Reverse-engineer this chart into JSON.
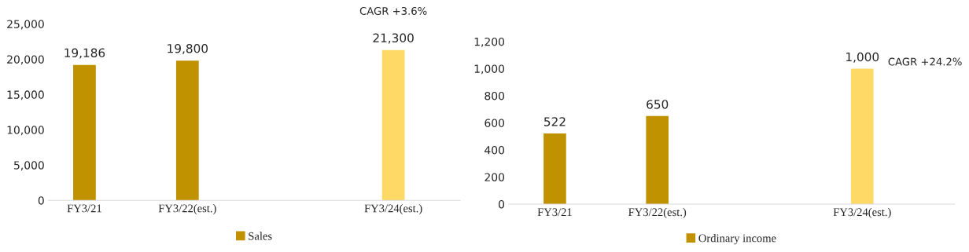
{
  "chart_data": [
    {
      "type": "bar",
      "categories": [
        "FY3/21",
        "FY3/22(est.)",
        null,
        "FY3/24(est.)"
      ],
      "series": [
        {
          "name": "Sales",
          "color": "#c09200",
          "colors": [
            "#c09200",
            "#c09200",
            null,
            "#ffd966"
          ],
          "values": [
            19186,
            19800,
            null,
            21300
          ]
        }
      ],
      "ylim": [
        0,
        25000
      ],
      "yticks": [
        {
          "value": 0,
          "label": "0"
        },
        {
          "value": 5000,
          "label": "5,000"
        },
        {
          "value": 10000,
          "label": "10,000"
        },
        {
          "value": 15000,
          "label": "15,000"
        },
        {
          "value": 20000,
          "label": "20,000"
        },
        {
          "value": 25000,
          "label": "25,000"
        }
      ],
      "value_labels": [
        "19,186",
        "19,800",
        null,
        "21,300"
      ],
      "annotations": [
        "CAGR +3.6%"
      ],
      "grid": false,
      "legend": "bottom"
    },
    {
      "type": "bar",
      "categories": [
        "FY3/21",
        "FY3/22(est.)",
        null,
        "FY3/24(est.)"
      ],
      "series": [
        {
          "name": "Ordinary income",
          "color": "#c09200",
          "colors": [
            "#c09200",
            "#c09200",
            null,
            "#ffd966"
          ],
          "values": [
            522,
            650,
            null,
            1000
          ]
        }
      ],
      "ylim": [
        0,
        1200
      ],
      "yticks": [
        {
          "value": 0,
          "label": "0"
        },
        {
          "value": 200,
          "label": "200"
        },
        {
          "value": 400,
          "label": "400"
        },
        {
          "value": 600,
          "label": "600"
        },
        {
          "value": 800,
          "label": "800"
        },
        {
          "value": 1000,
          "label": "1,000"
        },
        {
          "value": 1200,
          "label": "1,200"
        }
      ],
      "value_labels": [
        "522",
        "650",
        null,
        "1,000"
      ],
      "annotations": [
        "CAGR +24.2%"
      ],
      "grid": false,
      "legend": "bottom"
    }
  ]
}
